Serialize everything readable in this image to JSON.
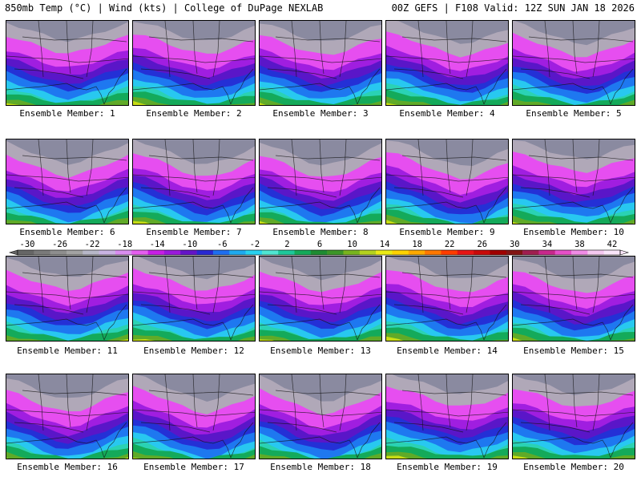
{
  "header": {
    "left": "850mb Temp (°C) | Wind (kts) | College of DuPage NEXLAB",
    "right": "00Z GEFS | F108 Valid: 12Z SUN JAN 18 2026"
  },
  "members": [
    {
      "label": "Ensemble Member: 1"
    },
    {
      "label": "Ensemble Member: 2"
    },
    {
      "label": "Ensemble Member: 3"
    },
    {
      "label": "Ensemble Member: 4"
    },
    {
      "label": "Ensemble Member: 5"
    },
    {
      "label": "Ensemble Member: 6"
    },
    {
      "label": "Ensemble Member: 7"
    },
    {
      "label": "Ensemble Member: 8"
    },
    {
      "label": "Ensemble Member: 9"
    },
    {
      "label": "Ensemble Member: 10"
    },
    {
      "label": "Ensemble Member: 11"
    },
    {
      "label": "Ensemble Member: 12"
    },
    {
      "label": "Ensemble Member: 13"
    },
    {
      "label": "Ensemble Member: 14"
    },
    {
      "label": "Ensemble Member: 15"
    },
    {
      "label": "Ensemble Member: 16"
    },
    {
      "label": "Ensemble Member: 17"
    },
    {
      "label": "Ensemble Member: 18"
    },
    {
      "label": "Ensemble Member: 19"
    },
    {
      "label": "Ensemble Member: 20"
    }
  ],
  "colorbar": {
    "labels": [
      "-30",
      "-26",
      "-22",
      "-18",
      "-14",
      "-10",
      "-6",
      "-2",
      "2",
      "6",
      "10",
      "14",
      "18",
      "22",
      "26",
      "30",
      "34",
      "38",
      "42"
    ],
    "colors": [
      "#666666",
      "#7a7a7a",
      "#8e8e8e",
      "#a3a3a3",
      "#b7b7c8",
      "#c9b3e3",
      "#d98ef0",
      "#e65ef0",
      "#c81ee6",
      "#9b19dc",
      "#6414c8",
      "#2828d2",
      "#1e6ef0",
      "#1eaaf0",
      "#28d2f0",
      "#50e6d2",
      "#1ec89b",
      "#14aa5a",
      "#1e8c32",
      "#3c9628",
      "#78b41e",
      "#b4d21e",
      "#ebeb14",
      "#ffd200",
      "#ffaa00",
      "#ff7800",
      "#ff3c00",
      "#e61414",
      "#c80a0a",
      "#a00000",
      "#821414",
      "#a01e50",
      "#c8288c",
      "#e650c8",
      "#f08ce6",
      "#f5c8f0",
      "#fae6fa"
    ]
  }
}
